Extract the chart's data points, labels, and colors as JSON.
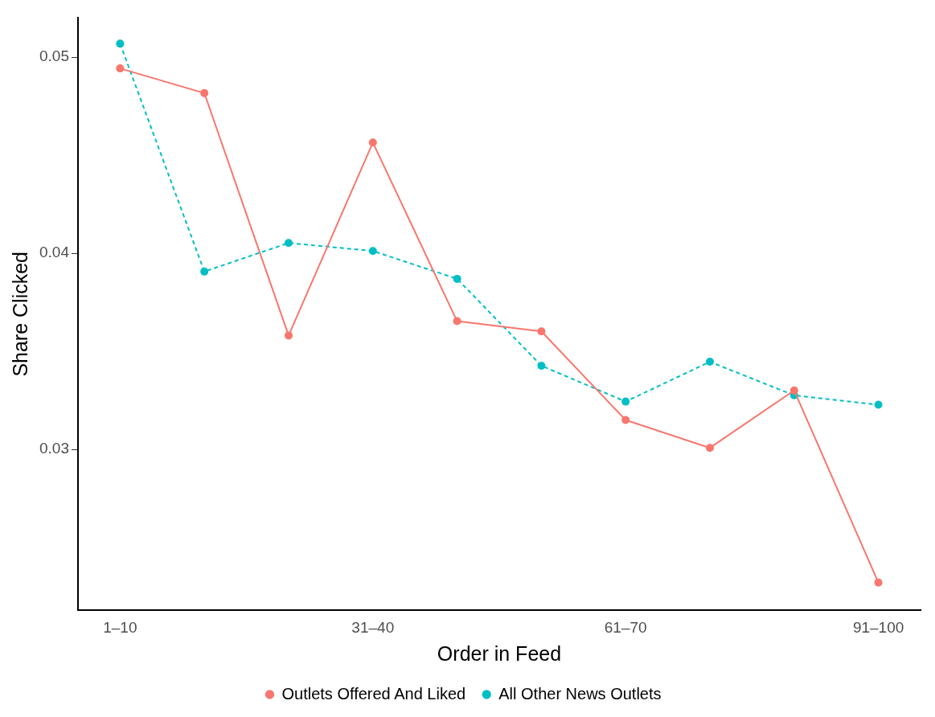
{
  "chart_data": {
    "type": "line",
    "xlabel": "Order in Feed",
    "ylabel": "Share Clicked",
    "categories": [
      "1–10",
      null,
      null,
      "31–40",
      null,
      null,
      "61–70",
      null,
      null,
      "91–100"
    ],
    "series": [
      {
        "name": "Outlets Offered And Liked",
        "color": "#f8766d",
        "line_style": "solid",
        "values": [
          0.04943,
          0.04817,
          0.03581,
          0.04565,
          0.03654,
          0.03602,
          0.0315,
          0.03008,
          0.03301,
          0.02321
        ]
      },
      {
        "name": "All Other News Outlets",
        "color": "#00bfc4",
        "line_style": "dashed",
        "values": [
          0.05069,
          0.03907,
          0.04053,
          0.04012,
          0.0387,
          0.03427,
          0.03244,
          0.03447,
          0.03276,
          0.03228
        ]
      }
    ],
    "ylim": [
      0.0218,
      0.052
    ],
    "yticks": [
      0.03,
      0.04,
      0.05
    ],
    "grid": false,
    "legend": "bottom",
    "marker": "circle"
  }
}
